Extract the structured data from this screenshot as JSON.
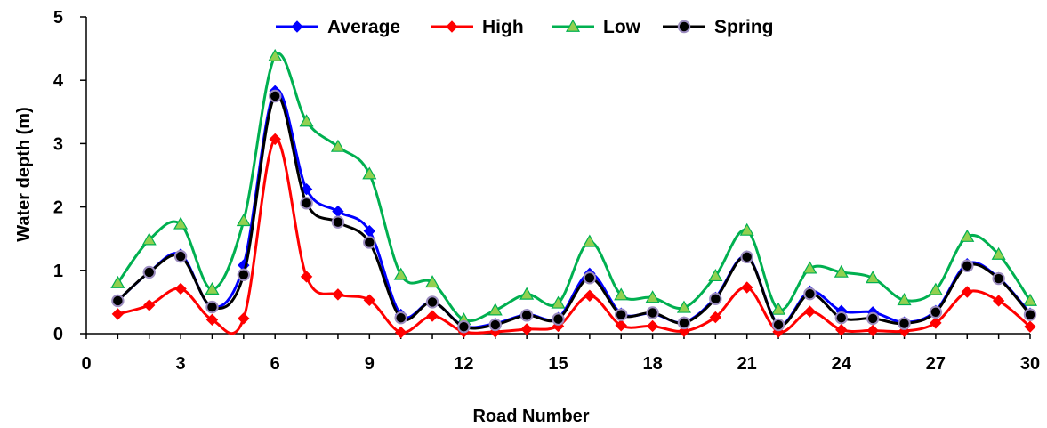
{
  "chart_data": {
    "type": "line",
    "xlabel": "Road Number",
    "ylabel": "Water depth (m)",
    "xlim": [
      0,
      30
    ],
    "ylim": [
      0,
      5
    ],
    "xticks": [
      0,
      3,
      6,
      9,
      12,
      15,
      18,
      21,
      24,
      27,
      30
    ],
    "yticks": [
      0,
      1,
      2,
      3,
      4,
      5
    ],
    "grid": false,
    "legend_position": "top",
    "x": [
      1,
      2,
      3,
      4,
      5,
      6,
      7,
      8,
      9,
      10,
      11,
      12,
      13,
      14,
      15,
      16,
      17,
      18,
      19,
      20,
      21,
      22,
      23,
      24,
      25,
      26,
      27,
      28,
      29,
      30
    ],
    "series": [
      {
        "name": "Average",
        "color": "#0000FF",
        "marker": "diamond",
        "values": [
          0.52,
          0.97,
          1.25,
          0.42,
          1.08,
          3.83,
          2.28,
          1.93,
          1.62,
          0.3,
          0.5,
          0.12,
          0.16,
          0.3,
          0.25,
          0.95,
          0.32,
          0.32,
          0.18,
          0.57,
          1.22,
          0.15,
          0.67,
          0.36,
          0.34,
          0.18,
          0.36,
          1.1,
          0.88,
          0.32
        ]
      },
      {
        "name": "High",
        "color": "#FF0000",
        "marker": "diamond",
        "values": [
          0.31,
          0.45,
          0.71,
          0.22,
          0.24,
          3.07,
          0.9,
          0.62,
          0.53,
          0.02,
          0.28,
          0.03,
          0.03,
          0.07,
          0.12,
          0.6,
          0.13,
          0.12,
          0.04,
          0.26,
          0.73,
          0.03,
          0.35,
          0.06,
          0.05,
          0.04,
          0.17,
          0.66,
          0.52,
          0.11
        ]
      },
      {
        "name": "Low",
        "color": "#00B050",
        "marker": "triangle",
        "values": [
          0.8,
          1.48,
          1.73,
          0.7,
          1.78,
          4.38,
          3.35,
          2.95,
          2.52,
          0.93,
          0.81,
          0.22,
          0.37,
          0.62,
          0.48,
          1.45,
          0.61,
          0.57,
          0.41,
          0.91,
          1.63,
          0.38,
          1.03,
          0.97,
          0.88,
          0.53,
          0.69,
          1.53,
          1.25,
          0.52
        ]
      },
      {
        "name": "Spring",
        "color": "#000000",
        "marker": "circle",
        "values": [
          0.52,
          0.97,
          1.22,
          0.42,
          0.93,
          3.75,
          2.06,
          1.76,
          1.44,
          0.25,
          0.5,
          0.11,
          0.14,
          0.29,
          0.23,
          0.88,
          0.3,
          0.33,
          0.17,
          0.55,
          1.21,
          0.14,
          0.63,
          0.25,
          0.24,
          0.16,
          0.34,
          1.07,
          0.87,
          0.3
        ]
      }
    ]
  }
}
